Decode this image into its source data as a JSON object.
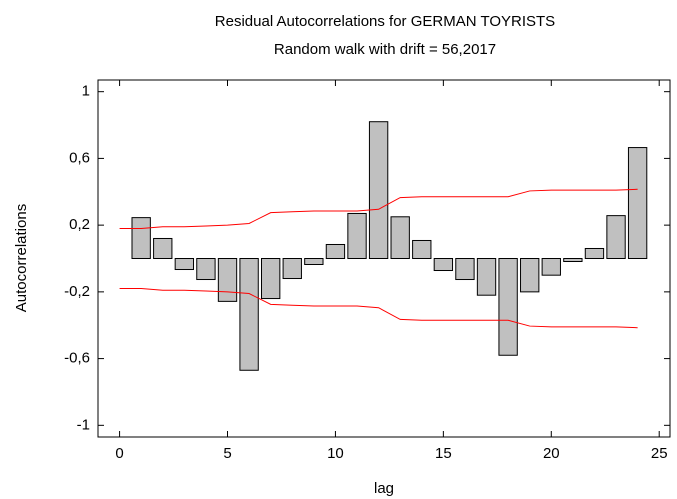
{
  "chart_data": {
    "type": "bar",
    "title": "Residual Autocorrelations for GERMAN TOYRISTS",
    "subtitle": "Random walk with drift = 56,2017",
    "xlabel": "lag",
    "ylabel": "Autocorrelations",
    "x": [
      1,
      2,
      3,
      4,
      5,
      6,
      7,
      8,
      9,
      10,
      11,
      12,
      13,
      14,
      15,
      16,
      17,
      18,
      19,
      20,
      21,
      22,
      23,
      24
    ],
    "values": [
      0.245,
      0.12,
      -0.066,
      -0.126,
      -0.257,
      -0.67,
      -0.24,
      -0.12,
      -0.036,
      0.084,
      0.27,
      0.82,
      0.25,
      0.108,
      -0.072,
      -0.126,
      -0.22,
      -0.58,
      -0.2,
      -0.1,
      -0.018,
      0.06,
      0.257,
      0.665
    ],
    "color": "#c0c0c0",
    "limit_x": [
      0,
      1,
      2,
      3,
      4,
      5,
      6,
      7,
      8,
      9,
      10,
      11,
      12,
      13,
      14,
      15,
      16,
      17,
      18,
      19,
      20,
      21,
      22,
      23,
      24
    ],
    "upper_limit": [
      0.18,
      0.18,
      0.19,
      0.19,
      0.195,
      0.2,
      0.21,
      0.275,
      0.28,
      0.285,
      0.285,
      0.285,
      0.295,
      0.365,
      0.37,
      0.37,
      0.37,
      0.37,
      0.37,
      0.405,
      0.41,
      0.41,
      0.41,
      0.41,
      0.415
    ],
    "lower_limit": [
      -0.18,
      -0.18,
      -0.19,
      -0.19,
      -0.195,
      -0.2,
      -0.21,
      -0.275,
      -0.28,
      -0.285,
      -0.285,
      -0.285,
      -0.295,
      -0.365,
      -0.37,
      -0.37,
      -0.37,
      -0.37,
      -0.37,
      -0.405,
      -0.41,
      -0.41,
      -0.41,
      -0.41,
      -0.415
    ],
    "limit_color": "#ff0000",
    "xlim": [
      -1,
      25.5
    ],
    "ylim": [
      -1.07,
      1.07
    ],
    "xticks": [
      0,
      5,
      10,
      15,
      20,
      25
    ],
    "yticks": [
      -1,
      {
        "value": -0.6,
        "label": "-0,6"
      },
      {
        "value": -0.2,
        "label": "-0,2"
      },
      {
        "value": 0.2,
        "label": "0,2"
      },
      {
        "value": 0.6,
        "label": "0,6"
      },
      1
    ]
  }
}
